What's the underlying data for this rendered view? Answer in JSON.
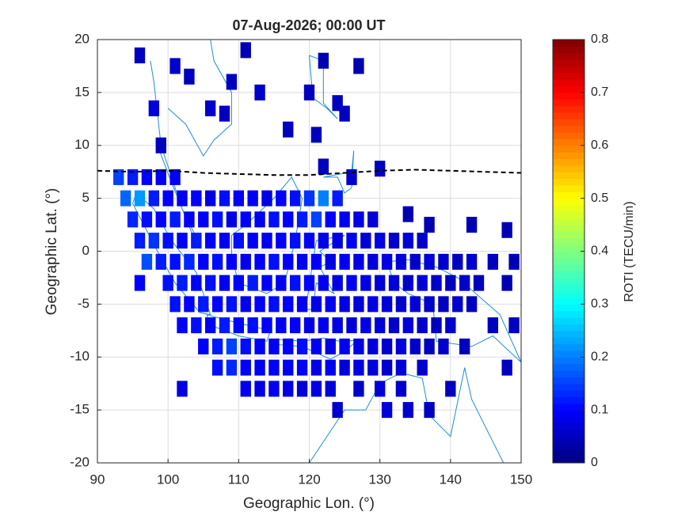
{
  "chart_data": {
    "type": "scatter",
    "title": "07-Aug-2026; 00:00 UT",
    "xlabel": "Geographic Lon. (°)",
    "ylabel": "Geographic Lat. (°)",
    "xlim": [
      90,
      150
    ],
    "ylim": [
      -20,
      20
    ],
    "xticks": [
      90,
      100,
      110,
      120,
      130,
      140,
      150
    ],
    "yticks": [
      -20,
      -15,
      -10,
      -5,
      0,
      5,
      10,
      15,
      20
    ],
    "grid": true,
    "colormap": "jet",
    "colorbar": {
      "label": "ROTI (TECU/min)",
      "lim": [
        0,
        0.8
      ],
      "ticks": [
        0,
        0.1,
        0.2,
        0.3,
        0.4,
        0.5,
        0.6,
        0.7,
        0.8
      ]
    },
    "series": [
      {
        "x": [
          93,
          95,
          97,
          99,
          101,
          94,
          96,
          98,
          100,
          102,
          104,
          106,
          108,
          110,
          112,
          114,
          116,
          118,
          120,
          122,
          124,
          95,
          97,
          99,
          101,
          103,
          105,
          107,
          109,
          111,
          113,
          115,
          117,
          119,
          121,
          123,
          125,
          127,
          129,
          96,
          98,
          100,
          102,
          104,
          106,
          108,
          110,
          112,
          114,
          116,
          118,
          120,
          122,
          124,
          126,
          128,
          130,
          132,
          134,
          136,
          97,
          99,
          101,
          103,
          105,
          107,
          109,
          111,
          113,
          115,
          117,
          119,
          121,
          123,
          125,
          127,
          129,
          131,
          133,
          135,
          137,
          139,
          141,
          143,
          146,
          149,
          96,
          100,
          102,
          104,
          106,
          108,
          110,
          112,
          114,
          116,
          118,
          120,
          122,
          124,
          126,
          128,
          130,
          132,
          134,
          136,
          138,
          140,
          142,
          144,
          148,
          101,
          103,
          105,
          107,
          109,
          111,
          113,
          115,
          117,
          119,
          121,
          123,
          125,
          127,
          129,
          131,
          133,
          135,
          137,
          139,
          141,
          143,
          102,
          104,
          106,
          108,
          110,
          112,
          114,
          116,
          118,
          120,
          122,
          124,
          126,
          128,
          130,
          132,
          134,
          136,
          138,
          140,
          146,
          149,
          105,
          107,
          109,
          111,
          113,
          115,
          117,
          119,
          121,
          123,
          125,
          127,
          129,
          131,
          133,
          135,
          137,
          139,
          142,
          107,
          109,
          111,
          113,
          115,
          117,
          119,
          121,
          123,
          125,
          127,
          129,
          131,
          133,
          136,
          148,
          102,
          111,
          113,
          115,
          117,
          119,
          121,
          123,
          127,
          130,
          133,
          140,
          124,
          131,
          134,
          137,
          96,
          98,
          101,
          103,
          106,
          109,
          111,
          113,
          117,
          120,
          122,
          125,
          127,
          121,
          122,
          126,
          130,
          134,
          137,
          143,
          148,
          99,
          108,
          124
        ],
        "y": [
          7,
          7,
          7,
          7,
          7,
          5,
          5,
          5,
          5,
          5,
          5,
          5,
          5,
          5,
          5,
          5,
          5,
          5,
          5,
          5,
          5,
          3,
          3,
          3,
          3,
          3,
          3,
          3,
          3,
          3,
          3,
          3,
          3,
          3,
          3,
          3,
          3,
          3,
          3,
          1,
          1,
          1,
          1,
          1,
          1,
          1,
          1,
          1,
          1,
          1,
          1,
          1,
          1,
          1,
          1,
          1,
          1,
          1,
          1,
          1,
          -1,
          -1,
          -1,
          -1,
          -1,
          -1,
          -1,
          -1,
          -1,
          -1,
          -1,
          -1,
          -1,
          -1,
          -1,
          -1,
          -1,
          -1,
          -1,
          -1,
          -1,
          -1,
          -1,
          -1,
          -1,
          -1,
          -3,
          -3,
          -3,
          -3,
          -3,
          -3,
          -3,
          -3,
          -3,
          -3,
          -3,
          -3,
          -3,
          -3,
          -3,
          -3,
          -3,
          -3,
          -3,
          -3,
          -3,
          -3,
          -3,
          -3,
          -3,
          -5,
          -5,
          -5,
          -5,
          -5,
          -5,
          -5,
          -5,
          -5,
          -5,
          -5,
          -5,
          -5,
          -5,
          -5,
          -5,
          -5,
          -5,
          -5,
          -5,
          -5,
          -5,
          -7,
          -7,
          -7,
          -7,
          -7,
          -7,
          -7,
          -7,
          -7,
          -7,
          -7,
          -7,
          -7,
          -7,
          -7,
          -7,
          -7,
          -7,
          -7,
          -7,
          -7,
          -7,
          -9,
          -9,
          -9,
          -9,
          -9,
          -9,
          -9,
          -9,
          -9,
          -9,
          -9,
          -9,
          -9,
          -9,
          -9,
          -9,
          -9,
          -9,
          -9,
          -11,
          -11,
          -11,
          -11,
          -11,
          -11,
          -11,
          -11,
          -11,
          -11,
          -11,
          -11,
          -11,
          -11,
          -11,
          -11,
          -13,
          -13,
          -13,
          -13,
          -13,
          -13,
          -13,
          -13,
          -13,
          -13,
          -13,
          -13,
          -15,
          -15,
          -15,
          -15,
          18.5,
          13.5,
          17.5,
          16.5,
          13.5,
          16,
          19,
          15,
          11.5,
          15,
          18,
          13,
          17.5,
          11,
          8,
          7,
          7.8,
          3.5,
          2.5,
          2.5,
          2,
          10,
          13,
          14
        ],
        "values": [
          0.15,
          0.12,
          0.1,
          0.09,
          0.1,
          0.18,
          0.22,
          0.12,
          0.1,
          0.09,
          0.1,
          0.08,
          0.11,
          0.09,
          0.1,
          0.08,
          0.1,
          0.11,
          0.14,
          0.2,
          0.12,
          0.13,
          0.11,
          0.1,
          0.12,
          0.09,
          0.1,
          0.11,
          0.08,
          0.1,
          0.09,
          0.11,
          0.1,
          0.12,
          0.15,
          0.1,
          0.09,
          0.08,
          0.07,
          0.12,
          0.14,
          0.11,
          0.1,
          0.12,
          0.1,
          0.09,
          0.11,
          0.1,
          0.09,
          0.1,
          0.11,
          0.1,
          0.09,
          0.08,
          0.09,
          0.07,
          0.08,
          0.06,
          0.07,
          0.06,
          0.16,
          0.12,
          0.11,
          0.13,
          0.1,
          0.11,
          0.1,
          0.09,
          0.1,
          0.11,
          0.1,
          0.09,
          0.1,
          0.08,
          0.09,
          0.08,
          0.07,
          0.08,
          0.07,
          0.06,
          0.07,
          0.06,
          0.05,
          0.06,
          0.05,
          0.04,
          0.1,
          0.11,
          0.12,
          0.1,
          0.11,
          0.09,
          0.1,
          0.12,
          0.1,
          0.09,
          0.11,
          0.1,
          0.09,
          0.08,
          0.09,
          0.08,
          0.07,
          0.07,
          0.06,
          0.07,
          0.06,
          0.05,
          0.06,
          0.05,
          0.04,
          0.11,
          0.1,
          0.12,
          0.1,
          0.11,
          0.09,
          0.1,
          0.11,
          0.1,
          0.09,
          0.08,
          0.09,
          0.08,
          0.07,
          0.08,
          0.07,
          0.06,
          0.07,
          0.06,
          0.05,
          0.06,
          0.05,
          0.1,
          0.11,
          0.09,
          0.12,
          0.1,
          0.11,
          0.1,
          0.09,
          0.1,
          0.08,
          0.09,
          0.08,
          0.07,
          0.08,
          0.07,
          0.06,
          0.07,
          0.06,
          0.05,
          0.06,
          0.05,
          0.05,
          0.1,
          0.12,
          0.15,
          0.11,
          0.1,
          0.09,
          0.1,
          0.11,
          0.09,
          0.08,
          0.09,
          0.08,
          0.07,
          0.06,
          0.07,
          0.06,
          0.05,
          0.06,
          0.05,
          0.11,
          0.13,
          0.1,
          0.09,
          0.1,
          0.09,
          0.1,
          0.08,
          0.09,
          0.07,
          0.08,
          0.07,
          0.06,
          0.07,
          0.06,
          0.05,
          0.08,
          0.09,
          0.08,
          0.09,
          0.08,
          0.07,
          0.08,
          0.07,
          0.06,
          0.07,
          0.06,
          0.05,
          0.06,
          0.07,
          0.06,
          0.05,
          0.05,
          0.07,
          0.06,
          0.05,
          0.06,
          0.05,
          0.04,
          0.06,
          0.05,
          0.05,
          0.04,
          0.05,
          0.04,
          0.05,
          0.05,
          0.06,
          0.05,
          0.04,
          0.04,
          0.04,
          0.04,
          0.05,
          0.05,
          0.05
        ]
      }
    ],
    "magnetic_equator": {
      "color": "#000000",
      "x": [
        90,
        95,
        100,
        105,
        110,
        115,
        120,
        125,
        130,
        135,
        140,
        145,
        150
      ],
      "y": [
        7.6,
        7.5,
        7.6,
        7.4,
        7.3,
        7.2,
        7.2,
        7.4,
        7.6,
        7.7,
        7.6,
        7.5,
        7.4
      ]
    }
  }
}
